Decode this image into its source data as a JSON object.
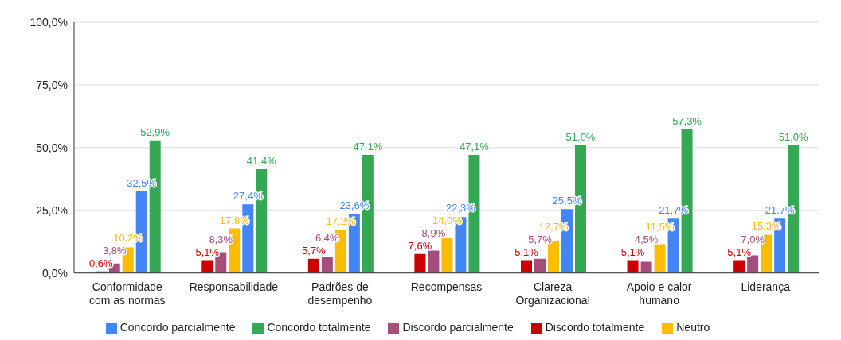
{
  "chart_data": {
    "type": "bar",
    "categories": [
      "Conformidade com as normas",
      "Responsabilidade",
      "Padrões de desempenho",
      "Recompensas",
      "Clareza Organizacional",
      "Apoio e calor humano",
      "Liderança"
    ],
    "series": [
      {
        "name": "Discordo totalmente",
        "color": "#cc0000",
        "values": [
          0.6,
          5.1,
          5.7,
          7.6,
          5.1,
          5.1,
          5.1
        ],
        "value_labels": [
          "0,6%",
          "5,1%",
          "5,7%",
          "7,6%",
          "5,1%",
          "5,1%",
          "5,1%"
        ]
      },
      {
        "name": "Discordo parcialmente",
        "color": "#a64d79",
        "values": [
          3.8,
          8.3,
          6.4,
          8.9,
          5.7,
          4.5,
          7.0
        ],
        "value_labels": [
          "3,8%",
          "8,3%",
          "6,4%",
          "8,9%",
          "5,7%",
          "4,5%",
          "7,0%"
        ]
      },
      {
        "name": "Neutro",
        "color": "#fbbc04",
        "values": [
          10.2,
          17.8,
          17.2,
          14.0,
          12.7,
          11.5,
          15.3
        ],
        "value_labels": [
          "10,2%",
          "17,8%",
          "17,2%",
          "14,0%",
          "12,7%",
          "11,5%",
          "15,3%"
        ]
      },
      {
        "name": "Concordo parcialmente",
        "color": "#4285f4",
        "values": [
          32.5,
          27.4,
          23.6,
          22.3,
          25.5,
          21.7,
          21.7
        ],
        "value_labels": [
          "32,5%",
          "27,4%",
          "23,6%",
          "22,3%",
          "25,5%",
          "21,7%",
          "21,7%"
        ]
      },
      {
        "name": "Concordo totalmente",
        "color": "#34a853",
        "values": [
          52.9,
          41.4,
          47.1,
          47.1,
          51.0,
          57.3,
          51.0
        ],
        "value_labels": [
          "52,9%",
          "41,4%",
          "47,1%",
          "47,1%",
          "51,0%",
          "57,3%",
          "51,0%"
        ]
      }
    ],
    "ylim": [
      0,
      100
    ],
    "yticks": [
      {
        "value": 0,
        "label": "0,0%"
      },
      {
        "value": 25,
        "label": "25,0%"
      },
      {
        "value": 50,
        "label": "50,0%"
      },
      {
        "value": 75,
        "label": "75,0%"
      },
      {
        "value": 100,
        "label": "100,0%"
      }
    ],
    "grid": "y",
    "legend": "bottom"
  }
}
